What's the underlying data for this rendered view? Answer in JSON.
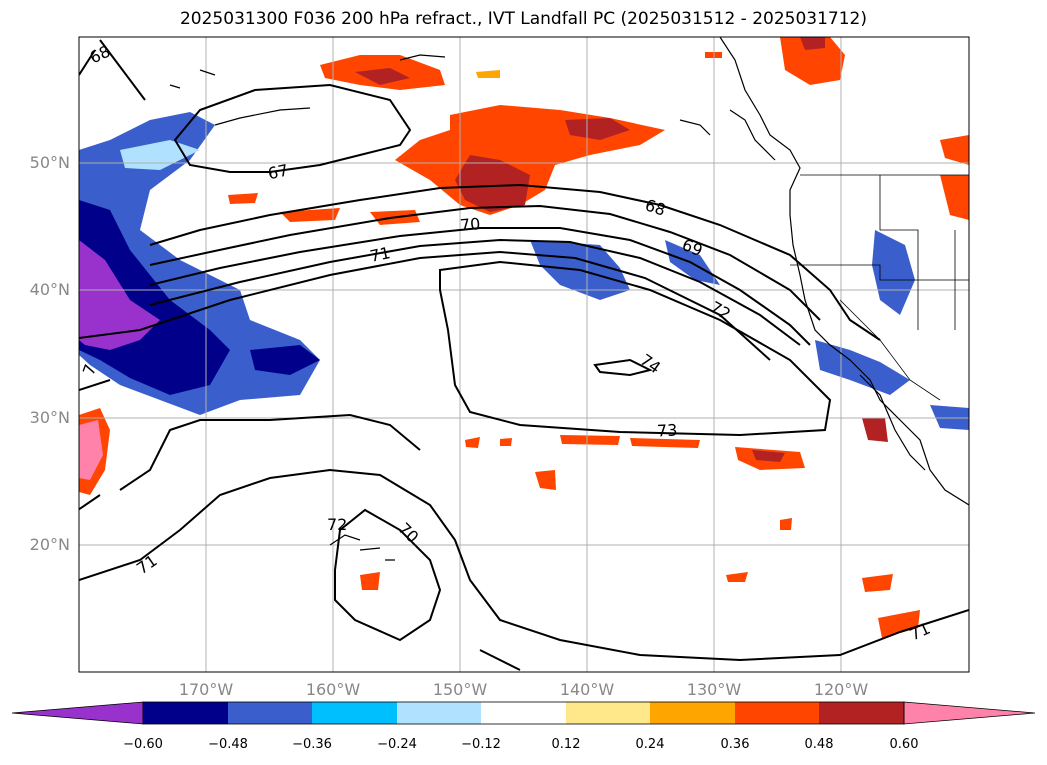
{
  "title": "2025031300 F036 200 hPa refract., IVT Landfall PC (2025031512 - 2025031712)",
  "map": {
    "lat_labels": [
      "50°N",
      "40°N",
      "30°N",
      "20°N"
    ],
    "lon_labels": [
      "170°W",
      "160°W",
      "150°W",
      "140°W",
      "130°W",
      "120°W"
    ],
    "contour_labels": [
      "68",
      "67",
      "68",
      "70",
      "71",
      "69",
      "72",
      "74",
      "73",
      "70",
      "71",
      "71",
      "72",
      "7"
    ],
    "colors": {
      "contour_line": "#000000",
      "coastline": "#000000",
      "gridline": "#b0b0b0"
    }
  },
  "colorbar": {
    "ticks": [
      "−0.60",
      "−0.48",
      "−0.36",
      "−0.24",
      "−0.12",
      "0.12",
      "0.24",
      "0.36",
      "0.48",
      "0.60"
    ],
    "colors": [
      "#9932cc",
      "#00008b",
      "#3a5fcd",
      "#00bfff",
      "#b0e2ff",
      "#ffffff",
      "#ffe88a",
      "#ffa500",
      "#ff4500",
      "#b22222",
      "#ff82ab"
    ]
  }
}
